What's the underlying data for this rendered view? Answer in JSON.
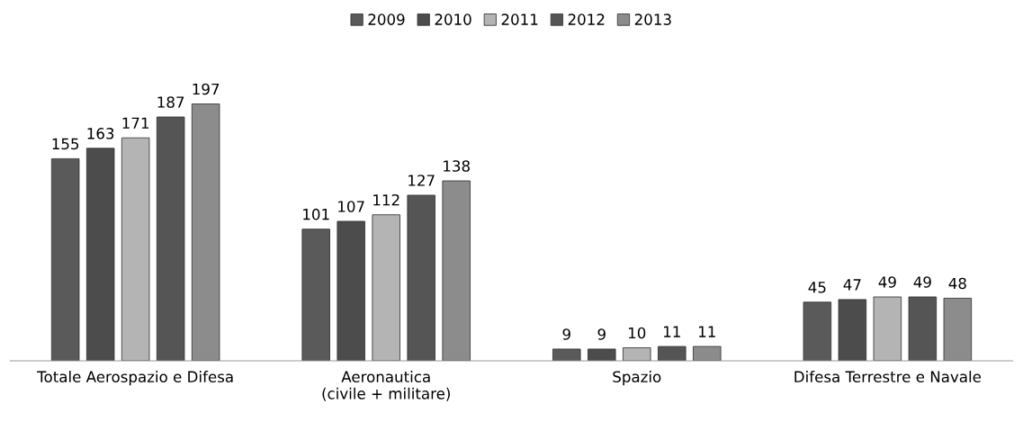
{
  "chart_data": {
    "type": "bar",
    "categories": [
      "Totale Aerospazio e Difesa",
      "Aeronautica\n(civile + militare)",
      "Spazio",
      "Difesa Terrestre e Navale"
    ],
    "series": [
      {
        "name": "2009",
        "color": "#5a5a5a",
        "values": [
          155,
          101,
          9,
          45
        ]
      },
      {
        "name": "2010",
        "color": "#4c4c4c",
        "values": [
          163,
          107,
          9,
          47
        ]
      },
      {
        "name": "2011",
        "color": "#b4b4b4",
        "values": [
          171,
          112,
          10,
          49
        ]
      },
      {
        "name": "2012",
        "color": "#555555",
        "values": [
          187,
          127,
          11,
          49
        ]
      },
      {
        "name": "2013",
        "color": "#8c8c8c",
        "values": [
          197,
          138,
          11,
          48
        ]
      }
    ],
    "data_labels": true,
    "legend": "top",
    "grid": false,
    "tick_labels": "x"
  }
}
